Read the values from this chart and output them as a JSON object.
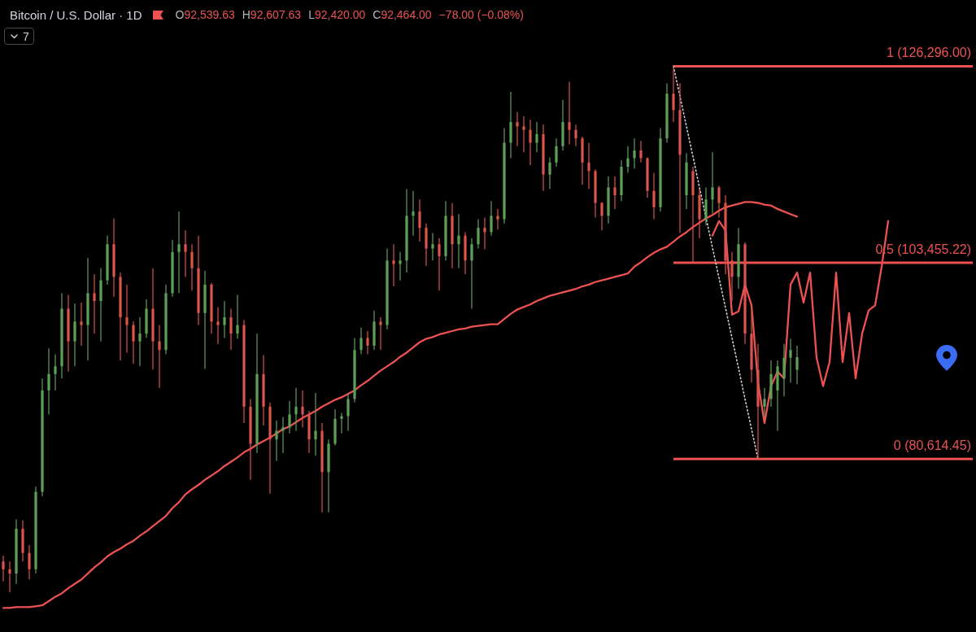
{
  "chart_data": {
    "type": "candlestick",
    "title": "Bitcoin / U.S. Dollar · 1D",
    "annotations": [
      "O92,539.63",
      "H92,607.63",
      "L92,420.00",
      "C92,464.00",
      "−78.00 (−0.08%)",
      "7"
    ],
    "categories": [
      null,
      null,
      null,
      null,
      null,
      null,
      null,
      null,
      null,
      null,
      null,
      null,
      null,
      null,
      null,
      null,
      null,
      null,
      null,
      null,
      null,
      null,
      null,
      null,
      null,
      null,
      null,
      null,
      null,
      null,
      null,
      null,
      null,
      null,
      null,
      null,
      null,
      null,
      null,
      null,
      null,
      null,
      null,
      null,
      null,
      null,
      null,
      null,
      null,
      null,
      null,
      null,
      null,
      null,
      null,
      null,
      null,
      null,
      null,
      null,
      null,
      null,
      null,
      null,
      null,
      null,
      null,
      null,
      null,
      null,
      null,
      null,
      null,
      null,
      null,
      null,
      null,
      null,
      null,
      null,
      null,
      null,
      null,
      null,
      null,
      null,
      null,
      null,
      null,
      null,
      null,
      null,
      null,
      null,
      null,
      null,
      null,
      null,
      null,
      null,
      null,
      null,
      null,
      null,
      null,
      null,
      null,
      null,
      null,
      null,
      null,
      null,
      null,
      null,
      null,
      null,
      null,
      null,
      null,
      null,
      null,
      null,
      null,
      null,
      null,
      null,
      null,
      null,
      null,
      null,
      null,
      null,
      null,
      null,
      null,
      null,
      null,
      null,
      null,
      null,
      null,
      null,
      null,
      null,
      null,
      null,
      null,
      null,
      null,
      null
    ],
    "ohlc": [
      [
        68700,
        69400,
        66400,
        67800
      ],
      [
        67800,
        68700,
        65100,
        67300
      ],
      [
        67300,
        73600,
        66100,
        72500
      ],
      [
        72500,
        73500,
        68700,
        69700
      ],
      [
        69700,
        70600,
        66600,
        67800
      ],
      [
        67800,
        77400,
        67300,
        76800
      ],
      [
        76800,
        90000,
        76300,
        88600
      ],
      [
        88600,
        93500,
        85800,
        90500
      ],
      [
        90500,
        92800,
        88600,
        91400
      ],
      [
        91400,
        99900,
        90000,
        98100
      ],
      [
        98100,
        99700,
        90800,
        94300
      ],
      [
        94300,
        98700,
        91400,
        96600
      ],
      [
        96600,
        98800,
        93800,
        96200
      ],
      [
        96200,
        104000,
        92100,
        99900
      ],
      [
        99900,
        102100,
        95200,
        99000
      ],
      [
        99000,
        102800,
        94300,
        101400
      ],
      [
        101400,
        106600,
        100900,
        105600
      ],
      [
        105600,
        108600,
        99500,
        101800
      ],
      [
        101800,
        102300,
        92100,
        97100
      ],
      [
        97100,
        100900,
        93000,
        96200
      ],
      [
        96200,
        96600,
        91700,
        94300
      ],
      [
        94300,
        97100,
        91400,
        95200
      ],
      [
        95200,
        99200,
        94700,
        98100
      ],
      [
        98100,
        102800,
        91000,
        94300
      ],
      [
        94300,
        96200,
        88900,
        93300
      ],
      [
        93300,
        100900,
        92800,
        99900
      ],
      [
        99900,
        106100,
        99500,
        104700
      ],
      [
        104700,
        109400,
        99900,
        105600
      ],
      [
        105600,
        107200,
        101800,
        104700
      ],
      [
        104700,
        105600,
        100200,
        102800
      ],
      [
        102800,
        106600,
        96200,
        97600
      ],
      [
        97600,
        102500,
        91100,
        100900
      ],
      [
        100900,
        101100,
        95200,
        96600
      ],
      [
        96600,
        98300,
        94000,
        96200
      ],
      [
        96200,
        99000,
        94700,
        97100
      ],
      [
        97100,
        98100,
        93300,
        95200
      ],
      [
        95200,
        99700,
        94600,
        96200
      ],
      [
        96200,
        96800,
        84800,
        86700
      ],
      [
        86700,
        87600,
        78200,
        82400
      ],
      [
        82400,
        95200,
        81300,
        90500
      ],
      [
        90500,
        92700,
        84500,
        86700
      ],
      [
        86700,
        87200,
        76600,
        82900
      ],
      [
        82900,
        85100,
        80400,
        83900
      ],
      [
        83900,
        85500,
        81300,
        84300
      ],
      [
        84300,
        87400,
        83600,
        85800
      ],
      [
        85800,
        88900,
        83900,
        86700
      ],
      [
        86700,
        88600,
        84300,
        85800
      ],
      [
        85800,
        86200,
        81300,
        82900
      ],
      [
        82900,
        88300,
        81000,
        83900
      ],
      [
        83900,
        84800,
        74400,
        79100
      ],
      [
        79100,
        82900,
        74400,
        82400
      ],
      [
        82400,
        86400,
        82200,
        85300
      ],
      [
        85300,
        86000,
        83600,
        85600
      ],
      [
        85600,
        88300,
        83900,
        87600
      ],
      [
        87600,
        94700,
        87200,
        93300
      ],
      [
        93300,
        95900,
        92800,
        94700
      ],
      [
        94700,
        95500,
        92800,
        93800
      ],
      [
        93800,
        97900,
        93300,
        96600
      ],
      [
        96600,
        97100,
        93300,
        96200
      ],
      [
        96200,
        105100,
        95700,
        103700
      ],
      [
        103700,
        105600,
        100700,
        103300
      ],
      [
        103300,
        104700,
        101400,
        103700
      ],
      [
        103700,
        112000,
        102300,
        108900
      ],
      [
        108900,
        111800,
        106600,
        109400
      ],
      [
        109400,
        110800,
        105900,
        107500
      ],
      [
        107500,
        108000,
        103100,
        105100
      ],
      [
        105100,
        106900,
        103700,
        105600
      ],
      [
        105600,
        106300,
        100200,
        104200
      ],
      [
        104200,
        110600,
        103700,
        108900
      ],
      [
        108900,
        110400,
        102800,
        105600
      ],
      [
        105600,
        109100,
        102800,
        106600
      ],
      [
        106600,
        107000,
        102100,
        103700
      ],
      [
        103700,
        106300,
        98100,
        105600
      ],
      [
        105600,
        108500,
        105100,
        107500
      ],
      [
        107500,
        108700,
        105000,
        107000
      ],
      [
        107000,
        110600,
        106600,
        108900
      ],
      [
        108900,
        109700,
        107300,
        108500
      ],
      [
        108500,
        119100,
        108000,
        117400
      ],
      [
        117400,
        123300,
        115600,
        119800
      ],
      [
        119800,
        121000,
        117000,
        119300
      ],
      [
        119300,
        120500,
        116300,
        118900
      ],
      [
        118900,
        120100,
        114800,
        117400
      ],
      [
        117400,
        119800,
        116300,
        118400
      ],
      [
        118400,
        119500,
        111800,
        113700
      ],
      [
        113700,
        115700,
        112000,
        115100
      ],
      [
        115100,
        117900,
        114600,
        117000
      ],
      [
        117000,
        122400,
        116500,
        119800
      ],
      [
        119800,
        124500,
        117200,
        118900
      ],
      [
        118900,
        119500,
        117000,
        117900
      ],
      [
        117900,
        118100,
        112500,
        115100
      ],
      [
        115100,
        117400,
        112000,
        114100
      ],
      [
        114100,
        114300,
        108700,
        110400
      ],
      [
        110400,
        110500,
        107200,
        108900
      ],
      [
        108900,
        113500,
        108000,
        112200
      ],
      [
        112200,
        113500,
        109700,
        111300
      ],
      [
        111300,
        115400,
        110600,
        114600
      ],
      [
        114600,
        117000,
        113900,
        115600
      ],
      [
        115600,
        117900,
        114400,
        116500
      ],
      [
        116500,
        117600,
        115100,
        115600
      ],
      [
        115600,
        115700,
        111000,
        111800
      ],
      [
        111800,
        113900,
        108500,
        109900
      ],
      [
        109900,
        119100,
        109400,
        117900
      ],
      [
        117900,
        124300,
        117400,
        123100
      ],
      [
        123100,
        126300,
        119800,
        121200
      ],
      [
        121200,
        124300,
        106900,
        116000
      ],
      [
        111300,
        116200,
        109700,
        115100
      ],
      [
        114100,
        114600,
        103400,
        111300
      ],
      [
        111300,
        112000,
        106300,
        108500
      ],
      [
        108500,
        112200,
        107800,
        110800
      ],
      [
        110800,
        116300,
        109200,
        112200
      ],
      [
        112200,
        112400,
        108700,
        110400
      ],
      [
        110400,
        111300,
        102100,
        103700
      ],
      [
        103700,
        104700,
        99000,
        101800
      ],
      [
        101800,
        107500,
        100400,
        105600
      ],
      [
        105600,
        105800,
        94000,
        95200
      ],
      [
        95200,
        97800,
        89500,
        91000
      ],
      [
        91000,
        94000,
        80600,
        86700
      ],
      [
        86700,
        88900,
        85500,
        87600
      ],
      [
        87600,
        92100,
        86700,
        90500
      ],
      [
        88600,
        92100,
        83900,
        91400
      ],
      [
        90000,
        94000,
        87900,
        92400
      ],
      [
        92400,
        94600,
        89500,
        93300
      ],
      [
        91000,
        93800,
        89300,
        92464
      ],
      null,
      null,
      null,
      null,
      null,
      null,
      null,
      null,
      null,
      null,
      null,
      null,
      null,
      null,
      null,
      null,
      null,
      null,
      null,
      null,
      null,
      null,
      null,
      null,
      null,
      null,
      null
    ],
    "colors": [
      "#d9534f",
      "#d9534f",
      "#5f9f5a",
      "#d9534f",
      "#d9534f",
      "#5f9f5a",
      "#5f9f5a",
      "#5f9f5a",
      "#5f9f5a",
      "#5f9f5a",
      "#d9534f",
      "#5f9f5a",
      "#d9534f",
      "#5f9f5a",
      "#d9534f",
      "#5f9f5a",
      "#5f9f5a",
      "#d9534f",
      "#d9534f",
      "#d9534f",
      "#d9534f",
      "#5f9f5a",
      "#5f9f5a",
      "#d9534f",
      "#d9534f",
      "#5f9f5a",
      "#5f9f5a",
      "#5f9f5a",
      "#d9534f",
      "#d9534f",
      "#d9534f",
      "#5f9f5a",
      "#d9534f",
      "#d9534f",
      "#5f9f5a",
      "#d9534f",
      "#5f9f5a",
      "#d9534f",
      "#d9534f",
      "#5f9f5a",
      "#d9534f",
      "#d9534f",
      "#5f9f5a",
      "#5f9f5a",
      "#5f9f5a",
      "#5f9f5a",
      "#d9534f",
      "#d9534f",
      "#5f9f5a",
      "#d9534f",
      "#5f9f5a",
      "#5f9f5a",
      "#5f9f5a",
      "#5f9f5a",
      "#5f9f5a",
      "#5f9f5a",
      "#d9534f",
      "#5f9f5a",
      "#d9534f",
      "#5f9f5a",
      "#d9534f",
      "#5f9f5a",
      "#5f9f5a",
      "#5f9f5a",
      "#d9534f",
      "#d9534f",
      "#5f9f5a",
      "#d9534f",
      "#5f9f5a",
      "#d9534f",
      "#5f9f5a",
      "#d9534f",
      "#5f9f5a",
      "#5f9f5a",
      "#d9534f",
      "#5f9f5a",
      "#d9534f",
      "#5f9f5a",
      "#5f9f5a",
      "#d9534f",
      "#d9534f",
      "#d9534f",
      "#5f9f5a",
      "#d9534f",
      "#5f9f5a",
      "#5f9f5a",
      "#5f9f5a",
      "#d9534f",
      "#d9534f",
      "#d9534f",
      "#d9534f",
      "#d9534f",
      "#d9534f",
      "#5f9f5a",
      "#d9534f",
      "#5f9f5a",
      "#5f9f5a",
      "#5f9f5a",
      "#d9534f",
      "#d9534f",
      "#d9534f",
      "#5f9f5a",
      "#5f9f5a",
      "#d9534f",
      "#d9534f",
      "#5f9f5a",
      "#d9534f",
      "#d9534f",
      "#5f9f5a",
      "#5f9f5a",
      "#d9534f",
      "#d9534f",
      "#d9534f",
      "#5f9f5a",
      "#d9534f",
      "#d9534f",
      "#d9534f",
      "#5f9f5a",
      "#5f9f5a",
      "#5f9f5a",
      "#5f9f5a",
      "#5f9f5a",
      "#5f9f5a",
      null,
      null,
      null,
      null,
      null,
      null,
      null,
      null,
      null,
      null,
      null,
      null,
      null,
      null,
      null,
      null,
      null,
      null,
      null,
      null,
      null,
      null,
      null,
      null,
      null,
      null,
      null
    ],
    "series": [
      {
        "type": "line",
        "color": "#ec5252",
        "values": [
          63300,
          63300,
          63400,
          63400,
          63400,
          63500,
          63600,
          64100,
          64600,
          65000,
          65600,
          66100,
          66600,
          67300,
          68000,
          68600,
          69300,
          69800,
          70200,
          70700,
          71100,
          71700,
          72200,
          72800,
          73400,
          74000,
          74900,
          75600,
          76500,
          77100,
          77600,
          78200,
          78700,
          79200,
          79800,
          80300,
          80800,
          81400,
          81800,
          82300,
          82700,
          83100,
          83600,
          84100,
          84400,
          84900,
          85400,
          85800,
          86200,
          86700,
          87100,
          87500,
          87800,
          88200,
          88600,
          89200,
          89700,
          90300,
          90900,
          91400,
          91900,
          92500,
          93000,
          93600,
          94200,
          94600,
          94800,
          95100,
          95300,
          95500,
          95700,
          95800,
          96000,
          96100,
          96200,
          96300,
          96300,
          96900,
          97500,
          98000,
          98300,
          98600,
          99000,
          99300,
          99600,
          99800,
          100000,
          100200,
          100400,
          100700,
          100900,
          101200,
          101400,
          101600,
          101800,
          102000,
          102200,
          103000,
          103500,
          104100,
          104600,
          105000,
          105300,
          105900,
          106500,
          107000,
          107600,
          108100,
          108600,
          109000,
          109500,
          109900,
          110100,
          110300,
          110500,
          110500,
          110400,
          110200,
          110100,
          109700,
          109400,
          109100,
          108800,
          null,
          null,
          null,
          null,
          null,
          null,
          null,
          null,
          null,
          null,
          null,
          null,
          null,
          null,
          null,
          null,
          null,
          null,
          null,
          null,
          null,
          null,
          null,
          null,
          null,
          null,
          null
        ]
      },
      {
        "type": "line",
        "color": "#ec5252",
        "values": [
          null,
          null,
          null,
          null,
          null,
          null,
          null,
          null,
          null,
          null,
          null,
          null,
          null,
          null,
          null,
          null,
          null,
          null,
          null,
          null,
          null,
          null,
          null,
          null,
          null,
          null,
          null,
          null,
          null,
          null,
          null,
          null,
          null,
          null,
          null,
          null,
          null,
          null,
          null,
          null,
          null,
          null,
          null,
          null,
          null,
          null,
          null,
          null,
          null,
          null,
          null,
          null,
          null,
          null,
          null,
          null,
          null,
          null,
          null,
          null,
          null,
          null,
          null,
          null,
          null,
          null,
          null,
          null,
          null,
          null,
          null,
          null,
          null,
          null,
          null,
          null,
          null,
          null,
          null,
          null,
          null,
          null,
          null,
          null,
          null,
          null,
          null,
          null,
          null,
          null,
          null,
          null,
          null,
          null,
          null,
          null,
          null,
          null,
          null,
          null,
          null,
          null,
          null,
          null,
          null,
          null,
          null,
          null,
          null,
          106600,
          108300,
          107200,
          97400,
          97800,
          100900,
          98500,
          89500,
          84800,
          89100,
          90800,
          90000,
          100900,
          102300,
          98800,
          102300,
          92400,
          89100,
          91900,
          102300,
          91900,
          97600,
          90000,
          95200,
          97900,
          98500,
          103000,
          108300,
          null,
          null,
          null,
          null,
          null,
          null,
          null,
          null,
          null,
          null,
          null,
          null,
          null
        ]
      },
      {
        "type": "line",
        "color": "#cfcfcf",
        "line_style": "dotted",
        "values": [
          null,
          null,
          null,
          null,
          null,
          null,
          null,
          null,
          null,
          null,
          null,
          null,
          null,
          null,
          null,
          null,
          null,
          null,
          null,
          null,
          null,
          null,
          null,
          null,
          null,
          null,
          null,
          null,
          null,
          null,
          null,
          null,
          null,
          null,
          null,
          null,
          null,
          null,
          null,
          null,
          null,
          null,
          null,
          null,
          null,
          null,
          null,
          null,
          null,
          null,
          null,
          null,
          null,
          null,
          null,
          null,
          null,
          null,
          null,
          null,
          null,
          null,
          null,
          null,
          null,
          null,
          null,
          null,
          null,
          null,
          null,
          null,
          null,
          null,
          null,
          null,
          null,
          null,
          null,
          null,
          null,
          null,
          null,
          null,
          null,
          null,
          null,
          null,
          null,
          null,
          null,
          null,
          null,
          null,
          null,
          null,
          null,
          null,
          null,
          null,
          null,
          null,
          null,
          126300,
          122800,
          119300,
          115800,
          112200,
          108700,
          105200,
          101700,
          98200,
          94700,
          91200,
          87600,
          84100,
          80600,
          null,
          null,
          null,
          null,
          null,
          null,
          null,
          null,
          null,
          null,
          null,
          null,
          null,
          null,
          null,
          null,
          null,
          null,
          null,
          null,
          null,
          null,
          null,
          null,
          null,
          null,
          null,
          null,
          null,
          null,
          null,
          null,
          null
        ]
      }
    ],
    "ref_lines": [
      {
        "axis": "y",
        "value": 126296,
        "label": "1 (126,296.00)",
        "color": "#ec5252"
      },
      {
        "axis": "y",
        "value": 103455.22,
        "label": "0.5 (103,455.22)",
        "color": "#ec5252"
      },
      {
        "axis": "y",
        "value": 80614.45,
        "label": "0 (80,614.45)",
        "color": "#ec5252"
      }
    ],
    "ylim": [
      60500,
      134000
    ],
    "tick_labels": false
  }
}
